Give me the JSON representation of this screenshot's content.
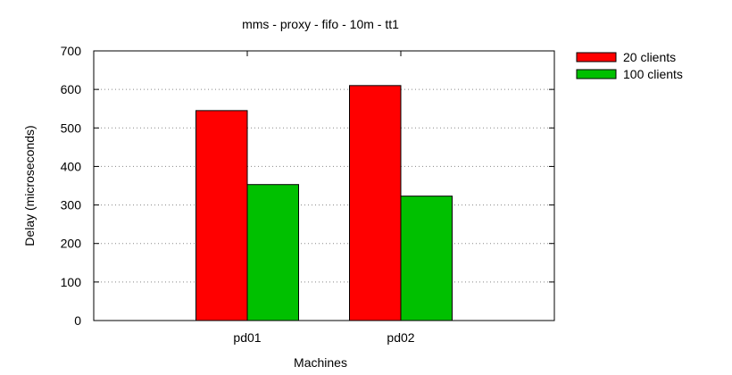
{
  "chart_data": {
    "type": "bar",
    "title": "mms - proxy - fifo - 10m - tt1",
    "xlabel": "Machines",
    "ylabel": "Delay (microseconds)",
    "ylim": [
      0,
      700
    ],
    "yticks": [
      0,
      100,
      200,
      300,
      400,
      500,
      600,
      700
    ],
    "grid": "horizontal-dotted",
    "legend_position": "top-right-outside",
    "categories": [
      "pd01",
      "pd02"
    ],
    "series": [
      {
        "name": "20 clients",
        "color": "#ff0000",
        "values": [
          545,
          610
        ]
      },
      {
        "name": "100 clients",
        "color": "#00c000",
        "values": [
          353,
          323
        ]
      }
    ]
  }
}
